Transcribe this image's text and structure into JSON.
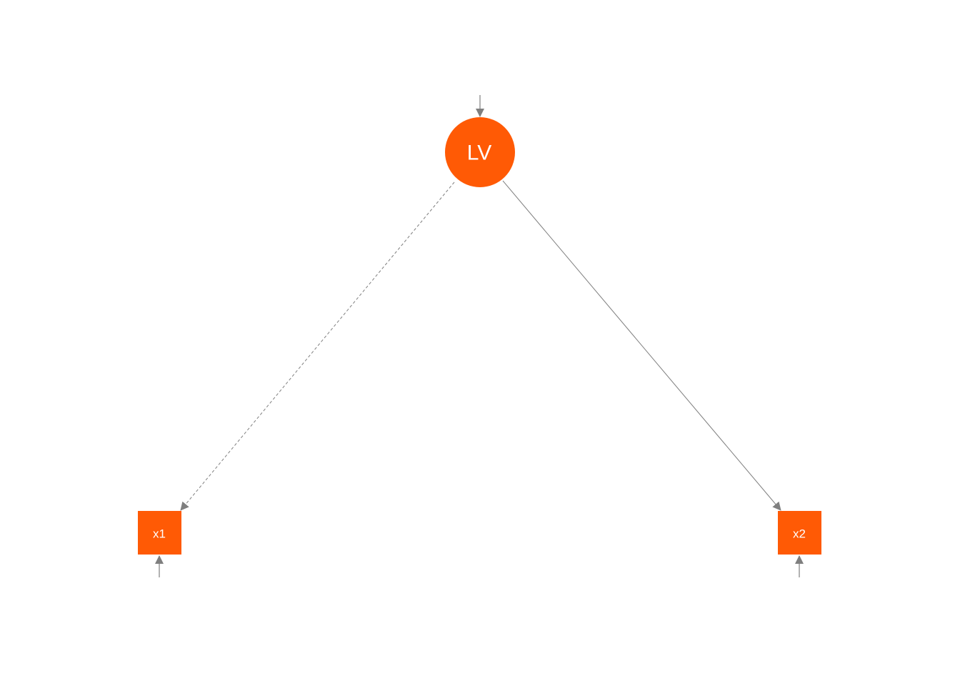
{
  "colors": {
    "node_fill": "#FF5A05",
    "edge": "#7F7F7F",
    "label": "#FFFFFF"
  },
  "nodes": {
    "latent": {
      "label": "LV",
      "shape": "circle"
    },
    "manifest": [
      {
        "label": "x1",
        "shape": "square"
      },
      {
        "label": "x2",
        "shape": "square"
      }
    ]
  },
  "edges": [
    {
      "from": "LV",
      "to": "x1",
      "style": "dashed"
    },
    {
      "from": "LV",
      "to": "x2",
      "style": "solid"
    }
  ]
}
